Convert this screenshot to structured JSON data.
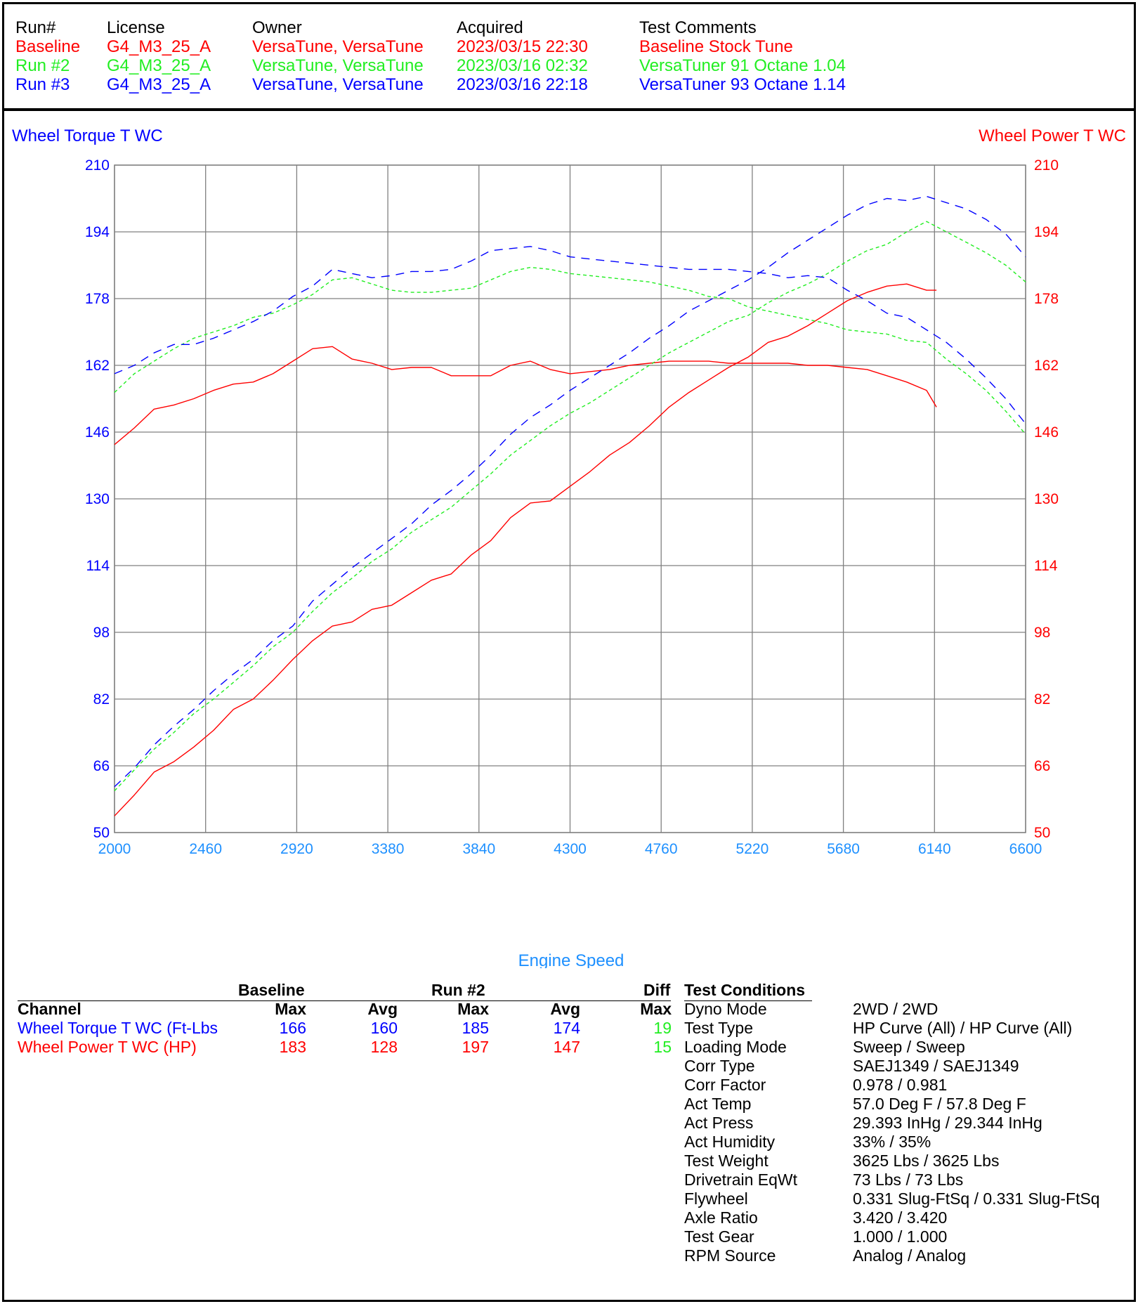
{
  "runs_header": {
    "columns": [
      "Run#",
      "License",
      "Owner",
      "Acquired",
      "Test Comments"
    ],
    "rows": [
      {
        "run": "Baseline",
        "license": "G4_M3_25_A",
        "owner": "VersaTune, VersaTune",
        "acquired": "2023/03/15 22:30",
        "comment": "Baseline Stock Tune",
        "color": "#ff0000"
      },
      {
        "run": "Run #2",
        "license": "G4_M3_25_A",
        "owner": "VersaTune, VersaTune",
        "acquired": "2023/03/16 02:32",
        "comment": "VersaTuner 91 Octane 1.04",
        "color": "#22ee22"
      },
      {
        "run": "Run #3",
        "license": "G4_M3_25_A",
        "owner": "VersaTune, VersaTune",
        "acquired": "2023/03/16 22:18",
        "comment": "VersaTuner 93 Octane 1.14",
        "color": "#0000ff"
      }
    ]
  },
  "chart_data": {
    "type": "line",
    "xlabel": "Engine Speed",
    "ylabel_left": "Wheel Torque T WC",
    "ylabel_right": "Wheel Power T WC",
    "xlim": [
      2000,
      6600
    ],
    "ylim": [
      50,
      210
    ],
    "x_ticks": [
      "2000",
      "2460",
      "2920",
      "3380",
      "3840",
      "4300",
      "4760",
      "5220",
      "5680",
      "6140",
      "6600"
    ],
    "y_ticks": [
      "210",
      "194",
      "178",
      "162",
      "146",
      "130",
      "114",
      "98",
      "82",
      "66",
      "50"
    ],
    "grid": true,
    "colors": {
      "torque_axis": "#0000ff",
      "power_axis": "#ff0000",
      "x_axis": "#1e90ff",
      "grid": "#808080"
    },
    "series": [
      {
        "name": "Baseline",
        "measure": "Wheel Power",
        "color": "#ff0000",
        "dash": "solid",
        "x": [
          2000,
          2100,
          2200,
          2300,
          2400,
          2500,
          2600,
          2700,
          2800,
          2900,
          3000,
          3100,
          3200,
          3300,
          3400,
          3500,
          3600,
          3700,
          3800,
          3900,
          4000,
          4100,
          4200,
          4300,
          4400,
          4500,
          4600,
          4700,
          4800,
          4900,
          5000,
          5100,
          5200,
          5300,
          5400,
          5500,
          5600,
          5700,
          5800,
          5900,
          6000,
          6100,
          6150
        ],
        "y": [
          54,
          59,
          64.5,
          67,
          70.5,
          74.5,
          79.5,
          82,
          86.5,
          91.5,
          96,
          99.5,
          100.5,
          103.5,
          104.5,
          107.5,
          110.5,
          112,
          116.5,
          120,
          125.5,
          129,
          129.5,
          133,
          136.5,
          140.5,
          143.5,
          147.5,
          152,
          155.5,
          158.5,
          161.5,
          164,
          167.5,
          169,
          171.5,
          174.5,
          177.5,
          179.5,
          181,
          181.5,
          180,
          180
        ]
      },
      {
        "name": "Baseline",
        "measure": "Wheel Torque",
        "color": "#ff0000",
        "dash": "solid",
        "x": [
          2000,
          2100,
          2200,
          2300,
          2400,
          2500,
          2600,
          2700,
          2800,
          2900,
          3000,
          3100,
          3200,
          3300,
          3400,
          3500,
          3600,
          3700,
          3800,
          3900,
          4000,
          4100,
          4200,
          4300,
          4400,
          4500,
          4600,
          4700,
          4800,
          4900,
          5000,
          5100,
          5200,
          5300,
          5400,
          5500,
          5600,
          5700,
          5800,
          5900,
          6000,
          6100,
          6150
        ],
        "y": [
          143,
          147,
          151.5,
          152.5,
          154,
          156,
          157.5,
          158,
          160,
          163,
          166,
          166.5,
          163.5,
          162.5,
          161,
          161.5,
          161.5,
          159.5,
          159.5,
          159.5,
          162,
          163,
          161,
          160,
          160.5,
          161,
          162,
          162.5,
          163,
          163,
          163,
          162.5,
          162.5,
          162.5,
          162.5,
          162,
          162,
          161.5,
          161,
          159.5,
          158,
          156,
          152
        ]
      },
      {
        "name": "Run #2",
        "measure": "Wheel Power",
        "color": "#22ee22",
        "dash": "dashed",
        "x": [
          2000,
          2100,
          2200,
          2300,
          2400,
          2500,
          2600,
          2700,
          2800,
          2900,
          3000,
          3100,
          3200,
          3300,
          3400,
          3500,
          3600,
          3700,
          3800,
          3900,
          4000,
          4100,
          4200,
          4300,
          4400,
          4500,
          4600,
          4700,
          4800,
          4900,
          5000,
          5100,
          5200,
          5300,
          5400,
          5500,
          5600,
          5700,
          5800,
          5900,
          6000,
          6100,
          6200,
          6300,
          6400,
          6500,
          6600
        ],
        "y": [
          60,
          65,
          70,
          74,
          78.5,
          82,
          86,
          90,
          94.5,
          98,
          103,
          107.5,
          111,
          115,
          118,
          122,
          125,
          128,
          132,
          136,
          140.5,
          144,
          147.5,
          150.5,
          153,
          156,
          159,
          162,
          165,
          167.5,
          170,
          172.5,
          174,
          177,
          179.5,
          181.5,
          184,
          187,
          189.5,
          191,
          194,
          196.5,
          194,
          191.5,
          189,
          186,
          182
        ]
      },
      {
        "name": "Run #2",
        "measure": "Wheel Torque",
        "color": "#22ee22",
        "dash": "dashed",
        "x": [
          2000,
          2100,
          2200,
          2300,
          2400,
          2500,
          2600,
          2700,
          2800,
          2900,
          3000,
          3100,
          3200,
          3300,
          3400,
          3500,
          3600,
          3700,
          3800,
          3900,
          4000,
          4100,
          4200,
          4300,
          4400,
          4500,
          4600,
          4700,
          4800,
          4900,
          5000,
          5100,
          5200,
          5300,
          5400,
          5500,
          5600,
          5700,
          5800,
          5900,
          6000,
          6100,
          6200,
          6300,
          6400,
          6500,
          6600
        ],
        "y": [
          155.5,
          160,
          163,
          166,
          168.5,
          170,
          171.5,
          173.5,
          174.5,
          176.5,
          179,
          182.5,
          183,
          181.5,
          180,
          179.5,
          179.5,
          180,
          180.5,
          182.5,
          184.5,
          185.5,
          185,
          184,
          183.5,
          183,
          182.5,
          182,
          181,
          180,
          178.5,
          178,
          176,
          175,
          174,
          173,
          172,
          170.5,
          170,
          169.5,
          168,
          167.5,
          163.5,
          160,
          156,
          151,
          145.5
        ]
      },
      {
        "name": "Run #3",
        "measure": "Wheel Power",
        "color": "#0000ff",
        "dash": "dashed",
        "x": [
          2000,
          2100,
          2200,
          2300,
          2400,
          2500,
          2600,
          2700,
          2800,
          2900,
          3000,
          3100,
          3200,
          3300,
          3400,
          3500,
          3600,
          3700,
          3800,
          3900,
          4000,
          4100,
          4200,
          4300,
          4400,
          4500,
          4600,
          4700,
          4800,
          4900,
          5000,
          5100,
          5200,
          5300,
          5400,
          5500,
          5600,
          5700,
          5800,
          5900,
          6000,
          6100,
          6200,
          6300,
          6400,
          6500,
          6600
        ],
        "y": [
          61,
          65.5,
          71,
          75.5,
          79.5,
          84,
          88,
          91.5,
          96,
          99.5,
          105.5,
          109.5,
          113.5,
          117,
          120.5,
          124,
          128.5,
          132,
          136,
          140.5,
          145.5,
          149.5,
          152.5,
          156,
          159,
          162,
          165,
          168.5,
          171.5,
          175,
          177.5,
          180,
          182.5,
          185.5,
          189,
          192,
          195,
          198,
          200.5,
          202,
          201.5,
          202.5,
          201,
          199.5,
          197,
          193.5,
          188
        ]
      },
      {
        "name": "Run #3",
        "measure": "Wheel Torque",
        "color": "#0000ff",
        "dash": "dashed",
        "x": [
          2000,
          2100,
          2200,
          2300,
          2400,
          2500,
          2600,
          2700,
          2800,
          2900,
          3000,
          3100,
          3200,
          3300,
          3400,
          3500,
          3600,
          3700,
          3800,
          3900,
          4000,
          4100,
          4200,
          4300,
          4400,
          4500,
          4600,
          4700,
          4800,
          4900,
          5000,
          5100,
          5200,
          5300,
          5400,
          5500,
          5600,
          5700,
          5800,
          5900,
          6000,
          6100,
          6200,
          6300,
          6400,
          6500,
          6600
        ],
        "y": [
          160,
          162,
          165,
          167,
          167,
          168.5,
          170.5,
          172.5,
          175,
          178.5,
          181,
          185,
          184,
          183,
          183.5,
          184.5,
          184.5,
          185,
          187,
          189.5,
          190,
          190.5,
          189.5,
          188,
          187.5,
          187,
          186.5,
          186,
          185.5,
          185,
          185,
          185,
          184.5,
          184,
          183,
          183.5,
          183,
          180,
          177.5,
          174.5,
          173.5,
          170.5,
          167.5,
          163.5,
          159,
          154,
          148
        ]
      }
    ]
  },
  "stats_table": {
    "group_headers": {
      "baseline": "Baseline",
      "run2": "Run #2",
      "diff": "Diff"
    },
    "col_headers": {
      "channel": "Channel",
      "b_max": "Max",
      "b_avg": "Avg",
      "r_max": "Max",
      "r_avg": "Avg",
      "d_max": "Max"
    },
    "rows": [
      {
        "channel": "Wheel Torque T WC (Ft-Lbs",
        "b_max": "166",
        "b_avg": "160",
        "r_max": "185",
        "r_avg": "174",
        "d_max": "19",
        "color": "#0000ff"
      },
      {
        "channel": "Wheel Power T WC (HP)",
        "b_max": "183",
        "b_avg": "128",
        "r_max": "197",
        "r_avg": "147",
        "d_max": "15",
        "color": "#ff0000"
      }
    ]
  },
  "test_conditions": {
    "title": "Test Conditions",
    "items": [
      {
        "label": "Dyno Mode",
        "value": "2WD / 2WD"
      },
      {
        "label": "Test Type",
        "value": "HP Curve (All) / HP Curve (All)"
      },
      {
        "label": "Loading Mode",
        "value": "Sweep / Sweep"
      },
      {
        "label": "Corr Type",
        "value": "SAEJ1349 / SAEJ1349"
      },
      {
        "label": "Corr Factor",
        "value": "0.978 / 0.981"
      },
      {
        "label": "Act Temp",
        "value": "57.0 Deg F / 57.8 Deg F"
      },
      {
        "label": "Act Press",
        "value": "29.393 InHg / 29.344 InHg"
      },
      {
        "label": "Act Humidity",
        "value": "33% / 35%"
      },
      {
        "label": "Test Weight",
        "value": "3625 Lbs / 3625 Lbs"
      },
      {
        "label": "Drivetrain EqWt",
        "value": "73 Lbs / 73 Lbs"
      },
      {
        "label": "Flywheel",
        "value": "0.331 Slug-FtSq / 0.331 Slug-FtSq"
      },
      {
        "label": "Axle Ratio",
        "value": "3.420 / 3.420"
      },
      {
        "label": "Test Gear",
        "value": "1.000 / 1.000"
      },
      {
        "label": "RPM Source",
        "value": "Analog / Analog"
      }
    ]
  }
}
